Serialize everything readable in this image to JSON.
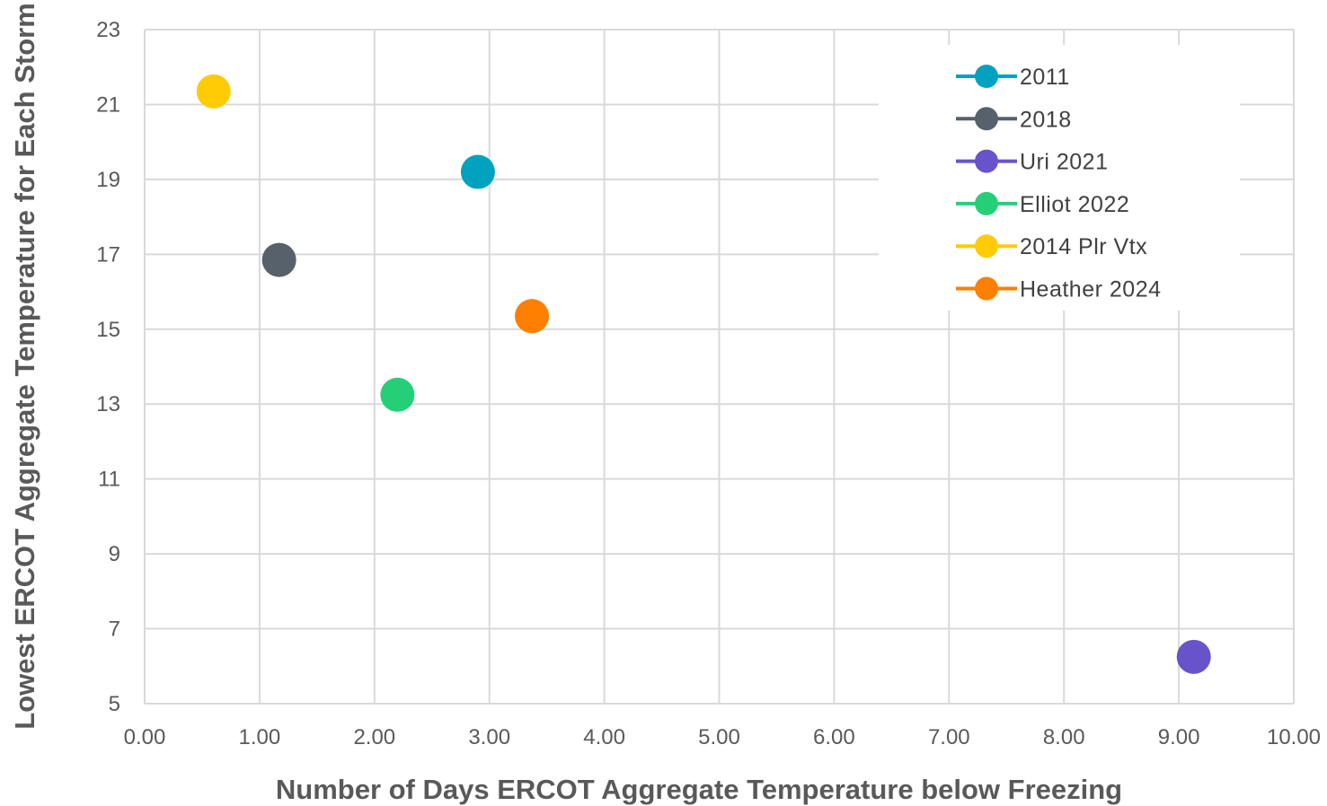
{
  "chart_data": {
    "type": "scatter",
    "title": "",
    "xlabel": "Number of Days ERCOT Aggregate Temperature below Freezing",
    "ylabel": "Lowest ERCOT Aggregate Temperature for Each Storm",
    "xlim": [
      0,
      10
    ],
    "ylim": [
      5,
      23
    ],
    "x_ticks": [
      "0.00",
      "1.00",
      "2.00",
      "3.00",
      "4.00",
      "5.00",
      "6.00",
      "7.00",
      "8.00",
      "9.00",
      "10.00"
    ],
    "y_ticks": [
      "5",
      "7",
      "9",
      "11",
      "13",
      "15",
      "17",
      "19",
      "21",
      "23"
    ],
    "grid": true,
    "legend_position": "top-right",
    "series": [
      {
        "name": "2011",
        "color": "#00A2C0",
        "x": 2.9,
        "y": 19.2
      },
      {
        "name": "2018",
        "color": "#56616B",
        "x": 1.17,
        "y": 16.85
      },
      {
        "name": "Uri 2021",
        "color": "#6953CB",
        "x": 9.13,
        "y": 6.25
      },
      {
        "name": "Elliot 2022",
        "color": "#24CF78",
        "x": 2.2,
        "y": 13.25
      },
      {
        "name": "2014 Plr Vtx",
        "color": "#FFCB05",
        "x": 0.6,
        "y": 21.35
      },
      {
        "name": "Heather 2024",
        "color": "#FF7F00",
        "x": 3.37,
        "y": 15.35
      }
    ]
  }
}
